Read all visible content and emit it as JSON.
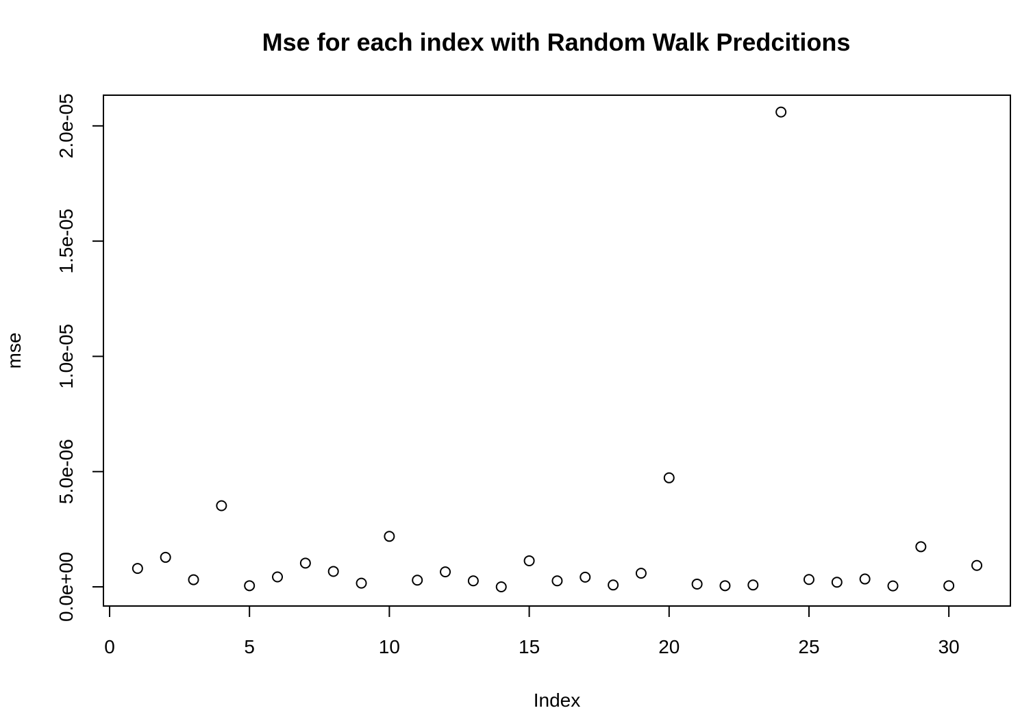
{
  "chart_data": {
    "type": "scatter",
    "title": "Mse for each index with Random Walk Predcitions",
    "xlabel": "Index",
    "ylabel": "mse",
    "xlim": [
      0,
      31
    ],
    "ylim": [
      0,
      2.05e-05
    ],
    "x_ticks": [
      0,
      5,
      10,
      15,
      20,
      25,
      30
    ],
    "x_tick_labels": [
      "0",
      "5",
      "10",
      "15",
      "20",
      "25",
      "30"
    ],
    "y_ticks": [
      0,
      5e-06,
      1e-05,
      1.5e-05,
      2e-05
    ],
    "y_tick_labels": [
      "0.0e+00",
      "5.0e-06",
      "1.0e-05",
      "1.5e-05",
      "2.0e-05"
    ],
    "grid": false,
    "marker": "open-circle",
    "x": [
      1,
      2,
      3,
      4,
      5,
      6,
      7,
      8,
      9,
      10,
      11,
      12,
      13,
      14,
      15,
      16,
      17,
      18,
      19,
      20,
      21,
      22,
      23,
      24,
      25,
      26,
      27,
      28,
      29,
      30,
      31
    ],
    "y": [
      8e-07,
      1.28e-06,
      3.1e-07,
      3.52e-06,
      5e-08,
      4.3e-07,
      1.03e-06,
      6.7e-07,
      1.6e-07,
      2.19e-06,
      2.9e-07,
      6.5e-07,
      2.6e-07,
      0.0,
      1.13e-06,
      2.6e-07,
      4.2e-07,
      8e-08,
      5.9e-07,
      4.73e-06,
      1.2e-07,
      5e-08,
      8e-08,
      2.06e-05,
      3.2e-07,
      2e-07,
      3.4e-07,
      4e-08,
      1.74e-06,
      5e-08,
      9.3e-07
    ]
  }
}
